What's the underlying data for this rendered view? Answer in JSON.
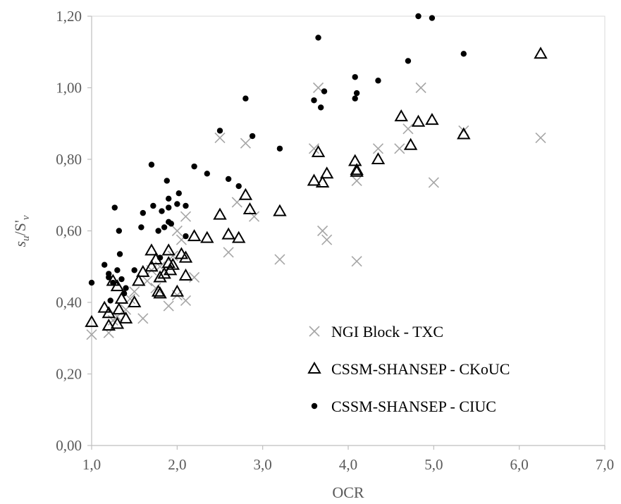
{
  "chart_data": {
    "type": "scatter",
    "title": "",
    "xlabel": "OCR",
    "ylabel_main": "s",
    "ylabel_sub1": "u",
    "ylabel_mid": "/S'",
    "ylabel_sub2": "v",
    "xlim": [
      1.0,
      7.0
    ],
    "ylim": [
      0.0,
      1.2
    ],
    "x_ticks": [
      1.0,
      2.0,
      3.0,
      4.0,
      5.0,
      6.0,
      7.0
    ],
    "x_tick_labels": [
      "1,0",
      "2,0",
      "3,0",
      "4,0",
      "5,0",
      "6,0",
      "7,0"
    ],
    "y_ticks": [
      0.0,
      0.2,
      0.4,
      0.6,
      0.8,
      1.0,
      1.2
    ],
    "y_tick_labels": [
      "0,00",
      "0,20",
      "0,40",
      "0,60",
      "0,80",
      "1,00",
      "1,20"
    ],
    "grid": false,
    "legend_position": "bottom-right",
    "series": [
      {
        "name": "NGI Block - TXC",
        "marker": "x",
        "color": "#a6a6a6",
        "points": [
          [
            1.0,
            0.31
          ],
          [
            1.2,
            0.315
          ],
          [
            1.25,
            0.35
          ],
          [
            1.3,
            0.36
          ],
          [
            1.4,
            0.38
          ],
          [
            1.45,
            0.41
          ],
          [
            1.5,
            0.43
          ],
          [
            1.6,
            0.355
          ],
          [
            1.65,
            0.46
          ],
          [
            1.7,
            0.49
          ],
          [
            1.75,
            0.44
          ],
          [
            1.8,
            0.5
          ],
          [
            1.9,
            0.39
          ],
          [
            1.95,
            0.53
          ],
          [
            2.0,
            0.42
          ],
          [
            2.0,
            0.6
          ],
          [
            2.05,
            0.575
          ],
          [
            2.1,
            0.405
          ],
          [
            2.1,
            0.64
          ],
          [
            2.2,
            0.47
          ],
          [
            2.5,
            0.86
          ],
          [
            2.6,
            0.54
          ],
          [
            2.7,
            0.68
          ],
          [
            2.8,
            0.845
          ],
          [
            2.9,
            0.64
          ],
          [
            3.2,
            0.52
          ],
          [
            3.6,
            0.83
          ],
          [
            3.65,
            1.0
          ],
          [
            3.7,
            0.6
          ],
          [
            3.75,
            0.575
          ],
          [
            4.1,
            0.74
          ],
          [
            4.1,
            0.515
          ],
          [
            4.35,
            0.83
          ],
          [
            4.6,
            0.83
          ],
          [
            4.7,
            0.885
          ],
          [
            4.85,
            1.0
          ],
          [
            5.0,
            0.735
          ],
          [
            5.35,
            0.88
          ],
          [
            6.25,
            0.86
          ]
        ]
      },
      {
        "name": "CSSM-SHANSEP - CKoUC",
        "marker": "triangle",
        "color": "#000000",
        "points": [
          [
            1.0,
            0.345
          ],
          [
            1.15,
            0.385
          ],
          [
            1.2,
            0.335
          ],
          [
            1.2,
            0.37
          ],
          [
            1.25,
            0.46
          ],
          [
            1.3,
            0.445
          ],
          [
            1.3,
            0.34
          ],
          [
            1.32,
            0.38
          ],
          [
            1.35,
            0.41
          ],
          [
            1.4,
            0.355
          ],
          [
            1.5,
            0.4
          ],
          [
            1.55,
            0.46
          ],
          [
            1.6,
            0.485
          ],
          [
            1.7,
            0.545
          ],
          [
            1.7,
            0.5
          ],
          [
            1.75,
            0.52
          ],
          [
            1.78,
            0.43
          ],
          [
            1.8,
            0.47
          ],
          [
            1.8,
            0.425
          ],
          [
            1.85,
            0.48
          ],
          [
            1.9,
            0.545
          ],
          [
            1.9,
            0.51
          ],
          [
            1.92,
            0.49
          ],
          [
            1.95,
            0.505
          ],
          [
            2.0,
            0.43
          ],
          [
            2.05,
            0.535
          ],
          [
            2.1,
            0.475
          ],
          [
            2.1,
            0.525
          ],
          [
            2.2,
            0.585
          ],
          [
            2.35,
            0.58
          ],
          [
            2.5,
            0.645
          ],
          [
            2.6,
            0.59
          ],
          [
            2.72,
            0.58
          ],
          [
            2.8,
            0.7
          ],
          [
            2.85,
            0.66
          ],
          [
            3.2,
            0.655
          ],
          [
            3.6,
            0.74
          ],
          [
            3.65,
            0.82
          ],
          [
            3.7,
            0.735
          ],
          [
            3.75,
            0.76
          ],
          [
            4.08,
            0.795
          ],
          [
            4.1,
            0.77
          ],
          [
            4.1,
            0.765
          ],
          [
            4.35,
            0.8
          ],
          [
            4.62,
            0.92
          ],
          [
            4.73,
            0.84
          ],
          [
            4.82,
            0.905
          ],
          [
            4.98,
            0.91
          ],
          [
            5.35,
            0.87
          ],
          [
            6.25,
            1.095
          ]
        ]
      },
      {
        "name": "CSSM-SHANSEP - CIUC",
        "marker": "dot",
        "color": "#000000",
        "points": [
          [
            1.0,
            0.455
          ],
          [
            1.15,
            0.505
          ],
          [
            1.2,
            0.48
          ],
          [
            1.2,
            0.47
          ],
          [
            1.22,
            0.405
          ],
          [
            1.25,
            0.455
          ],
          [
            1.27,
            0.665
          ],
          [
            1.3,
            0.49
          ],
          [
            1.32,
            0.6
          ],
          [
            1.33,
            0.535
          ],
          [
            1.35,
            0.465
          ],
          [
            1.38,
            0.425
          ],
          [
            1.4,
            0.44
          ],
          [
            1.5,
            0.49
          ],
          [
            1.58,
            0.61
          ],
          [
            1.6,
            0.65
          ],
          [
            1.7,
            0.785
          ],
          [
            1.72,
            0.67
          ],
          [
            1.78,
            0.6
          ],
          [
            1.8,
            0.525
          ],
          [
            1.82,
            0.655
          ],
          [
            1.85,
            0.61
          ],
          [
            1.88,
            0.74
          ],
          [
            1.9,
            0.665
          ],
          [
            1.9,
            0.69
          ],
          [
            1.9,
            0.625
          ],
          [
            1.93,
            0.62
          ],
          [
            2.0,
            0.675
          ],
          [
            2.02,
            0.705
          ],
          [
            2.1,
            0.585
          ],
          [
            2.1,
            0.67
          ],
          [
            2.2,
            0.78
          ],
          [
            2.35,
            0.76
          ],
          [
            2.5,
            0.88
          ],
          [
            2.6,
            0.745
          ],
          [
            2.72,
            0.725
          ],
          [
            2.8,
            0.97
          ],
          [
            2.88,
            0.865
          ],
          [
            3.2,
            0.83
          ],
          [
            3.6,
            0.965
          ],
          [
            3.65,
            1.14
          ],
          [
            3.68,
            0.945
          ],
          [
            3.72,
            0.99
          ],
          [
            4.08,
            1.03
          ],
          [
            4.08,
            0.97
          ],
          [
            4.1,
            0.985
          ],
          [
            4.35,
            1.02
          ],
          [
            4.7,
            1.075
          ],
          [
            4.82,
            1.2
          ],
          [
            4.98,
            1.195
          ],
          [
            5.35,
            1.095
          ]
        ]
      }
    ]
  }
}
